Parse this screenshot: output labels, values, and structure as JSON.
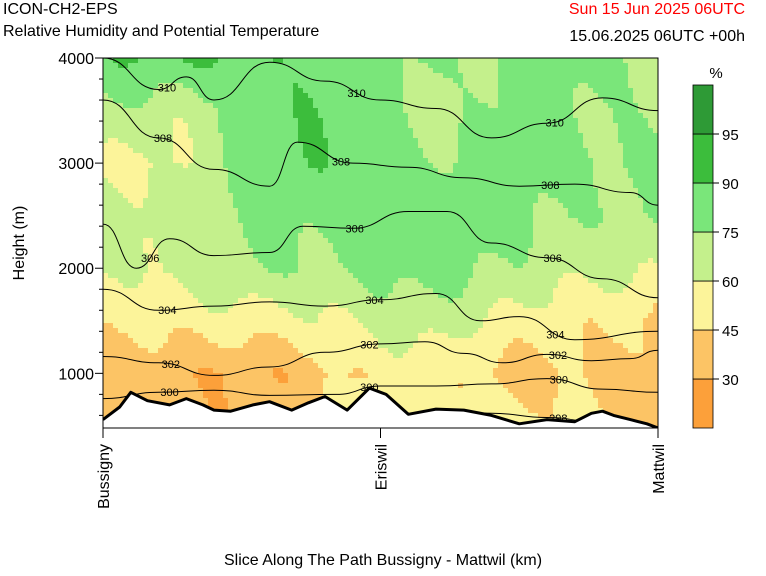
{
  "header": {
    "model": "ICON-CH2-EPS",
    "subtitle": "Relative Humidity and Potential Temperature",
    "valid_time": "Sun 15 Jun 2025 06UTC",
    "init_time": "15.06.2025 06UTC +00h",
    "valid_time_color": "#ff0000"
  },
  "chart_data": {
    "type": "heatmap",
    "title": "Relative Humidity and Potential Temperature",
    "xlabel": "Slice Along The Path Bussigny - Mattwil (km)",
    "ylabel": "Height (m)",
    "ylim": [
      480,
      4000
    ],
    "y_ticks": [
      1000,
      2000,
      3000,
      4000
    ],
    "x_ticks": [
      {
        "pos": 0,
        "label": "Bussigny"
      },
      {
        "pos": 0.5,
        "label": "Eriswil"
      },
      {
        "pos": 1,
        "label": "Mattwil"
      }
    ],
    "colorbar": {
      "unit": "%",
      "levels": [
        30,
        45,
        60,
        75,
        90,
        95
      ],
      "colors": [
        "#fca03a",
        "#fcc465",
        "#fcf49a",
        "#c4f08c",
        "#7ae67a",
        "#3cbd3c",
        "#2e9a36"
      ]
    },
    "rh_field": {
      "x": [
        0,
        0.125,
        0.25,
        0.375,
        0.5,
        0.625,
        0.75,
        0.875,
        1
      ],
      "z": [
        500,
        1000,
        1500,
        2000,
        2500,
        3000,
        3500,
        4000
      ],
      "values": [
        [
          40,
          35,
          38,
          40,
          50,
          56,
          48,
          46,
          46
        ],
        [
          38,
          30,
          32,
          38,
          48,
          52,
          38,
          40,
          40
        ],
        [
          52,
          48,
          52,
          60,
          62,
          66,
          58,
          46,
          42
        ],
        [
          62,
          66,
          72,
          76,
          80,
          78,
          74,
          64,
          58
        ],
        [
          66,
          70,
          74,
          80,
          82,
          84,
          80,
          76,
          72
        ],
        [
          54,
          60,
          80,
          86,
          84,
          76,
          82,
          80,
          76
        ],
        [
          70,
          64,
          80,
          86,
          82,
          70,
          80,
          76,
          76
        ],
        [
          86,
          88,
          94,
          84,
          80,
          76,
          80,
          78,
          74
        ]
      ]
    },
    "theta_contours": [
      {
        "label": "298",
        "points": [
          [
            0.0,
            480
          ],
          [
            0.25,
            520
          ],
          [
            0.5,
            560
          ],
          [
            0.55,
            590
          ],
          [
            0.6,
            640
          ],
          [
            0.7,
            620
          ],
          [
            0.8,
            580
          ],
          [
            0.9,
            530
          ],
          [
            1.0,
            490
          ]
        ]
      },
      {
        "label": "300",
        "points": [
          [
            0.0,
            760
          ],
          [
            0.1,
            820
          ],
          [
            0.2,
            840
          ],
          [
            0.3,
            790
          ],
          [
            0.42,
            800
          ],
          [
            0.5,
            880
          ],
          [
            0.6,
            880
          ],
          [
            0.7,
            900
          ],
          [
            0.8,
            950
          ],
          [
            0.9,
            850
          ],
          [
            1.0,
            820
          ]
        ]
      },
      {
        "label": "302",
        "points": [
          [
            0.0,
            1160
          ],
          [
            0.1,
            1100
          ],
          [
            0.2,
            980
          ],
          [
            0.3,
            1060
          ],
          [
            0.4,
            1200
          ],
          [
            0.5,
            1280
          ],
          [
            0.58,
            1300
          ],
          [
            0.65,
            1190
          ],
          [
            0.72,
            1100
          ],
          [
            0.8,
            1180
          ],
          [
            0.88,
            1120
          ],
          [
            0.95,
            1140
          ],
          [
            1.0,
            1220
          ]
        ]
      },
      {
        "label": "304",
        "points": [
          [
            0.0,
            1800
          ],
          [
            0.1,
            1600
          ],
          [
            0.2,
            1640
          ],
          [
            0.3,
            1680
          ],
          [
            0.4,
            1640
          ],
          [
            0.5,
            1700
          ],
          [
            0.6,
            1760
          ],
          [
            0.68,
            1500
          ],
          [
            0.75,
            1540
          ],
          [
            0.85,
            1320
          ],
          [
            1.0,
            1400
          ]
        ]
      },
      {
        "label": "306",
        "points": [
          [
            0.0,
            2420
          ],
          [
            0.06,
            2000
          ],
          [
            0.12,
            2280
          ],
          [
            0.2,
            2120
          ],
          [
            0.3,
            2150
          ],
          [
            0.36,
            2400
          ],
          [
            0.45,
            2380
          ],
          [
            0.55,
            2540
          ],
          [
            0.62,
            2540
          ],
          [
            0.7,
            2240
          ],
          [
            0.8,
            2100
          ],
          [
            0.9,
            1900
          ],
          [
            1.0,
            1720
          ]
        ]
      },
      {
        "label": "308",
        "points": [
          [
            0.0,
            3600
          ],
          [
            0.1,
            3240
          ],
          [
            0.2,
            2940
          ],
          [
            0.3,
            2780
          ],
          [
            0.35,
            3200
          ],
          [
            0.45,
            3000
          ],
          [
            0.55,
            2960
          ],
          [
            0.65,
            2860
          ],
          [
            0.75,
            2780
          ],
          [
            0.85,
            2800
          ],
          [
            0.95,
            2720
          ],
          [
            1.0,
            2600
          ]
        ]
      },
      {
        "label": "310",
        "points": [
          [
            0.0,
            4000
          ],
          [
            0.1,
            3700
          ],
          [
            0.15,
            3820
          ],
          [
            0.2,
            3600
          ],
          [
            0.3,
            3960
          ],
          [
            0.4,
            3780
          ],
          [
            0.5,
            3600
          ],
          [
            0.6,
            3520
          ],
          [
            0.7,
            3240
          ],
          [
            0.8,
            3380
          ],
          [
            0.9,
            3620
          ],
          [
            1.0,
            3500
          ]
        ]
      }
    ],
    "terrain": {
      "points": [
        [
          0.0,
          560
        ],
        [
          0.03,
          680
        ],
        [
          0.05,
          820
        ],
        [
          0.08,
          740
        ],
        [
          0.12,
          700
        ],
        [
          0.15,
          760
        ],
        [
          0.18,
          700
        ],
        [
          0.2,
          650
        ],
        [
          0.23,
          640
        ],
        [
          0.27,
          700
        ],
        [
          0.3,
          730
        ],
        [
          0.34,
          650
        ],
        [
          0.37,
          720
        ],
        [
          0.4,
          780
        ],
        [
          0.44,
          650
        ],
        [
          0.48,
          860
        ],
        [
          0.51,
          800
        ],
        [
          0.55,
          610
        ],
        [
          0.6,
          660
        ],
        [
          0.65,
          650
        ],
        [
          0.7,
          600
        ],
        [
          0.75,
          520
        ],
        [
          0.8,
          560
        ],
        [
          0.85,
          540
        ],
        [
          0.88,
          620
        ],
        [
          0.9,
          640
        ],
        [
          0.92,
          600
        ],
        [
          0.95,
          560
        ],
        [
          0.98,
          520
        ],
        [
          1.0,
          480
        ]
      ]
    }
  }
}
